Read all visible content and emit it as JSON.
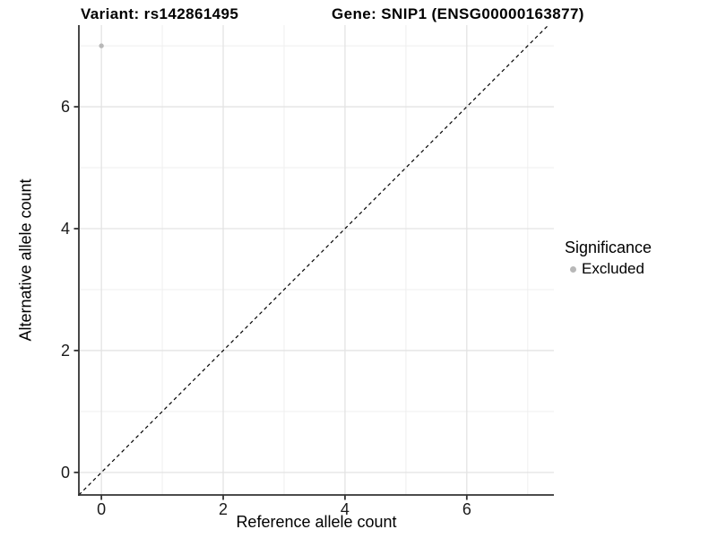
{
  "header": {
    "title_left": "Variant: rs142861495",
    "title_right": "Gene: SNIP1 (ENSG00000163877)"
  },
  "chart_data": {
    "type": "scatter",
    "title": "Variant: rs142861495   Gene: SNIP1 (ENSG00000163877)",
    "xlabel": "Reference allele count",
    "ylabel": "Alternative allele count",
    "xlim": [
      -0.37,
      7.43
    ],
    "ylim": [
      -0.37,
      7.34
    ],
    "x_ticks": [
      0,
      2,
      4,
      6
    ],
    "y_ticks": [
      0,
      2,
      4,
      6
    ],
    "x_minor_ticks": [
      1,
      3,
      5,
      7
    ],
    "y_minor_ticks": [
      1,
      3,
      5,
      7
    ],
    "grid": "on",
    "points": [
      {
        "x": 0,
        "y": 7,
        "significance": "Excluded"
      }
    ],
    "reference_line": {
      "type": "identity y=x",
      "style": "dashed",
      "color": "#000000"
    },
    "legend": {
      "title": "Significance",
      "position": "right",
      "items": [
        {
          "label": "Excluded",
          "color": "#b8b8b8",
          "marker": "circle"
        }
      ]
    },
    "colors": {
      "background": "#ffffff",
      "point": "#b8b8b8",
      "grid_major": "#e3e3e3",
      "grid_minor": "#efefef",
      "axis_line": "#333333",
      "tick_text": "#1a1a1a",
      "title_text": "#000000"
    }
  }
}
